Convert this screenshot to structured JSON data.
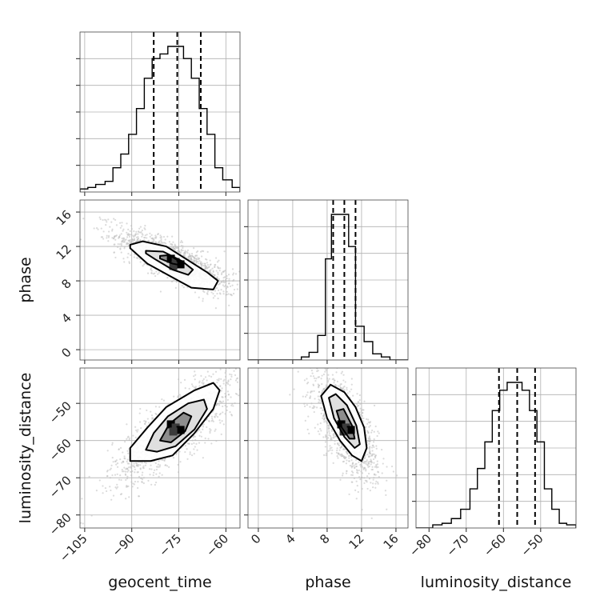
{
  "chart_data": {
    "type": "corner",
    "parameters": [
      "geocent_time",
      "phase",
      "luminosity_distance"
    ],
    "axes": {
      "geocent_time": {
        "label": "geocent_time",
        "range": [
          -106.5,
          -55.5
        ],
        "ticks": [
          -105,
          -90,
          -75,
          -60
        ],
        "tick_labels": [
          "−105",
          "−90",
          "−75",
          "−60"
        ]
      },
      "phase": {
        "label": "phase",
        "range": [
          -1.2,
          17.4
        ],
        "ticks": [
          0,
          4,
          8,
          12,
          16
        ],
        "tick_labels": [
          "0",
          "4",
          "8",
          "12",
          "16"
        ]
      },
      "luminosity_distance": {
        "label": "luminosity_distance",
        "range": [
          -83.5,
          -40.5
        ],
        "ticks": [
          -80,
          -70,
          -60,
          -50
        ],
        "tick_labels": [
          "−80",
          "−70",
          "−60",
          "−50"
        ]
      }
    },
    "quantiles": {
      "geocent_time": [
        -83.0,
        -75.5,
        -68.0
      ],
      "phase": [
        8.7,
        10.0,
        11.3
      ],
      "luminosity_distance": [
        -61.2,
        -56.3,
        -51.5
      ]
    },
    "histograms": {
      "geocent_time": {
        "edges": [
          -106.5,
          -104.0,
          -101.5,
          -98.5,
          -96.0,
          -93.5,
          -91.0,
          -88.5,
          -86.0,
          -83.5,
          -81.0,
          -78.5,
          -76.0,
          -73.5,
          -71.0,
          -68.5,
          -66.0,
          -63.5,
          -61.0,
          -58.0,
          -55.5
        ],
        "counts": [
          0.02,
          0.03,
          0.05,
          0.07,
          0.16,
          0.25,
          0.38,
          0.55,
          0.75,
          0.88,
          0.91,
          0.96,
          0.96,
          0.88,
          0.75,
          0.55,
          0.38,
          0.16,
          0.08,
          0.03
        ]
      },
      "phase": {
        "edges": [
          -1.2,
          0.0,
          1.0,
          2.0,
          3.0,
          4.0,
          5.0,
          5.9,
          6.9,
          7.8,
          8.5,
          9.5,
          10.5,
          11.3,
          12.3,
          13.3,
          14.3,
          15.3,
          17.4
        ],
        "counts": [
          0.0,
          0.0,
          0.0,
          0.0,
          0.0,
          0.0,
          0.02,
          0.05,
          0.16,
          0.66,
          0.95,
          0.95,
          0.74,
          0.22,
          0.12,
          0.04,
          0.02,
          0.0
        ]
      },
      "luminosity_distance": {
        "edges": [
          -83.5,
          -79.0,
          -76.5,
          -74.0,
          -71.5,
          -69.0,
          -67.0,
          -65.0,
          -63.0,
          -61.0,
          -59.0,
          -57.0,
          -55.0,
          -53.0,
          -51.0,
          -49.0,
          -47.0,
          -45.0,
          -43.0,
          -40.5
        ],
        "counts": [
          0.0,
          0.02,
          0.03,
          0.06,
          0.12,
          0.25,
          0.38,
          0.55,
          0.75,
          0.88,
          0.93,
          0.93,
          0.88,
          0.75,
          0.55,
          0.25,
          0.12,
          0.03,
          0.02
        ]
      }
    },
    "pairs": [
      {
        "x": "geocent_time",
        "y": "phase",
        "center": [
          -76.0,
          10.2
        ],
        "contours": [
          [
            [
              -90.5,
              12.2
            ],
            [
              -86.5,
              12.6
            ],
            [
              -79.0,
              12.0
            ],
            [
              -72.5,
              10.5
            ],
            [
              -66.0,
              9.0
            ],
            [
              -62.5,
              8.0
            ],
            [
              -64.0,
              7.0
            ],
            [
              -71.0,
              7.2
            ],
            [
              -77.5,
              8.5
            ],
            [
              -85.0,
              10.0
            ],
            [
              -90.5,
              11.8
            ]
          ],
          [
            [
              -85.5,
              11.5
            ],
            [
              -80.0,
              11.4
            ],
            [
              -74.0,
              10.3
            ],
            [
              -70.5,
              9.3
            ],
            [
              -72.0,
              8.7
            ],
            [
              -77.0,
              9.3
            ],
            [
              -82.5,
              10.5
            ],
            [
              -85.5,
              11.2
            ]
          ],
          [
            [
              -81.0,
              10.9
            ],
            [
              -78.0,
              11.0
            ],
            [
              -75.0,
              10.3
            ],
            [
              -74.0,
              9.8
            ],
            [
              -77.0,
              10.0
            ],
            [
              -81.0,
              10.6
            ]
          ]
        ]
      },
      {
        "x": "geocent_time",
        "y": "luminosity_distance",
        "center": [
          -76.0,
          -56.5
        ],
        "contours": [
          [
            [
              -90.5,
              -65.5
            ],
            [
              -90.5,
              -62.0
            ],
            [
              -85.0,
              -56.5
            ],
            [
              -79.0,
              -51.0
            ],
            [
              -70.0,
              -46.5
            ],
            [
              -64.0,
              -44.5
            ],
            [
              -62.0,
              -46.5
            ],
            [
              -64.0,
              -51.5
            ],
            [
              -70.0,
              -58.0
            ],
            [
              -77.0,
              -64.0
            ],
            [
              -84.0,
              -65.5
            ],
            [
              -90.5,
              -65.5
            ]
          ],
          [
            [
              -85.5,
              -62.5
            ],
            [
              -83.0,
              -58.0
            ],
            [
              -78.5,
              -53.5
            ],
            [
              -72.0,
              -50.0
            ],
            [
              -67.0,
              -49.0
            ],
            [
              -66.0,
              -51.5
            ],
            [
              -70.0,
              -57.0
            ],
            [
              -76.0,
              -61.5
            ],
            [
              -82.0,
              -63.0
            ],
            [
              -85.5,
              -62.5
            ]
          ],
          [
            [
              -81.0,
              -60.0
            ],
            [
              -78.0,
              -55.5
            ],
            [
              -73.5,
              -52.5
            ],
            [
              -71.0,
              -53.5
            ],
            [
              -73.0,
              -57.5
            ],
            [
              -77.5,
              -60.5
            ],
            [
              -81.0,
              -60.0
            ]
          ]
        ]
      },
      {
        "x": "phase",
        "y": "luminosity_distance",
        "center": [
          10.2,
          -56.5
        ],
        "contours": [
          [
            [
              7.3,
              -48.0
            ],
            [
              8.4,
              -45.0
            ],
            [
              10.0,
              -47.0
            ],
            [
              11.3,
              -51.0
            ],
            [
              12.3,
              -56.5
            ],
            [
              12.6,
              -62.0
            ],
            [
              12.0,
              -65.5
            ],
            [
              10.9,
              -64.0
            ],
            [
              9.5,
              -60.0
            ],
            [
              8.0,
              -54.0
            ],
            [
              7.3,
              -48.0
            ]
          ],
          [
            [
              8.2,
              -48.5
            ],
            [
              9.0,
              -47.5
            ],
            [
              10.3,
              -50.5
            ],
            [
              11.4,
              -56.0
            ],
            [
              11.8,
              -61.0
            ],
            [
              11.2,
              -62.0
            ],
            [
              10.0,
              -59.0
            ],
            [
              8.8,
              -54.0
            ],
            [
              8.2,
              -48.5
            ]
          ],
          [
            [
              9.1,
              -52.0
            ],
            [
              9.9,
              -51.5
            ],
            [
              10.9,
              -56.0
            ],
            [
              11.2,
              -59.5
            ],
            [
              10.6,
              -59.5
            ],
            [
              9.7,
              -56.5
            ],
            [
              9.1,
              -52.0
            ]
          ]
        ]
      }
    ],
    "grid": true,
    "colors": {
      "line": "#000000",
      "scatter": "#bdbdbd",
      "fill_dark": "#000000",
      "fill_mid": "#7f7f7f",
      "fill_light": "#d9d9d9"
    }
  }
}
